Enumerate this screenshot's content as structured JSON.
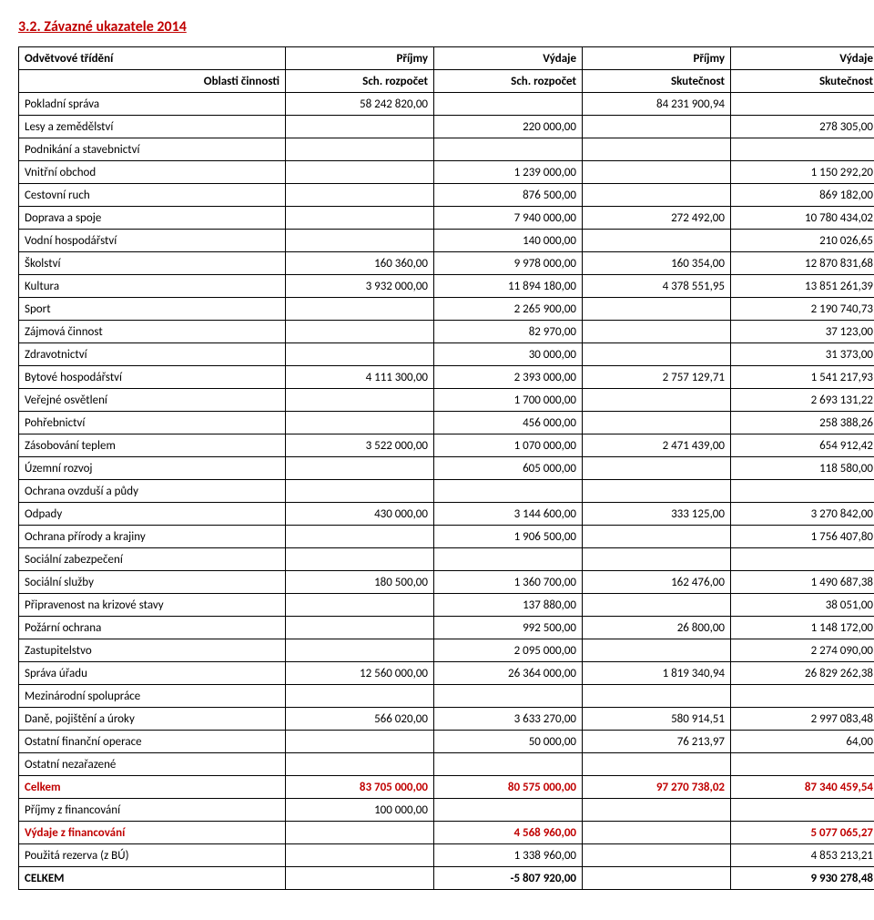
{
  "title": "3.2. Závazné ukazatele 2014",
  "colors": {
    "heading": "#c00000",
    "text": "#000000",
    "border": "#000000",
    "background": "#ffffff"
  },
  "header": {
    "row1": [
      "Odvětvové třídění",
      "Příjmy",
      "Výdaje",
      "Příjmy",
      "Výdaje"
    ],
    "row2": [
      "Oblasti činnosti",
      "Sch. rozpočet",
      "Sch. rozpočet",
      "Skutečnost",
      "Skutečnost"
    ]
  },
  "rows": [
    {
      "label": "Pokladní správa",
      "c1": "58 242 820,00",
      "c2": "",
      "c3": "84 231 900,94",
      "c4": ""
    },
    {
      "label": "Lesy a zemědělství",
      "c1": "",
      "c2": "220 000,00",
      "c3": "",
      "c4": "278 305,00"
    },
    {
      "label": "Podnikání a stavebnictví",
      "c1": "",
      "c2": "",
      "c3": "",
      "c4": ""
    },
    {
      "label": "Vnitřní obchod",
      "c1": "",
      "c2": "1 239 000,00",
      "c3": "",
      "c4": "1 150 292,20"
    },
    {
      "label": "Cestovní ruch",
      "c1": "",
      "c2": "876 500,00",
      "c3": "",
      "c4": "869 182,00"
    },
    {
      "label": "Doprava a spoje",
      "c1": "",
      "c2": "7 940 000,00",
      "c3": "272 492,00",
      "c4": "10 780 434,02"
    },
    {
      "label": "Vodní hospodářství",
      "c1": "",
      "c2": "140 000,00",
      "c3": "",
      "c4": "210 026,65"
    },
    {
      "label": "Školství",
      "c1": "160 360,00",
      "c2": "9 978 000,00",
      "c3": "160 354,00",
      "c4": "12 870 831,68"
    },
    {
      "label": "Kultura",
      "c1": "3 932 000,00",
      "c2": "11 894 180,00",
      "c3": "4 378 551,95",
      "c4": "13 851 261,39"
    },
    {
      "label": "Sport",
      "c1": "",
      "c2": "2 265 900,00",
      "c3": "",
      "c4": "2 190 740,73"
    },
    {
      "label": "Zájmová činnost",
      "c1": "",
      "c2": "82 970,00",
      "c3": "",
      "c4": "37 123,00"
    },
    {
      "label": "Zdravotnictví",
      "c1": "",
      "c2": "30 000,00",
      "c3": "",
      "c4": "31 373,00"
    },
    {
      "label": "Bytové hospodářství",
      "c1": "4 111 300,00",
      "c2": "2 393 000,00",
      "c3": "2 757 129,71",
      "c4": "1 541 217,93"
    },
    {
      "label": "Veřejné osvětlení",
      "c1": "",
      "c2": "1 700 000,00",
      "c3": "",
      "c4": "2 693 131,22"
    },
    {
      "label": "Pohřebnictví",
      "c1": "",
      "c2": "456 000,00",
      "c3": "",
      "c4": "258 388,26"
    },
    {
      "label": "Zásobování teplem",
      "c1": "3 522 000,00",
      "c2": "1 070 000,00",
      "c3": "2 471 439,00",
      "c4": "654 912,42"
    },
    {
      "label": "Územní rozvoj",
      "c1": "",
      "c2": "605 000,00",
      "c3": "",
      "c4": "118 580,00"
    },
    {
      "label": "Ochrana ovzduší a půdy",
      "c1": "",
      "c2": "",
      "c3": "",
      "c4": ""
    },
    {
      "label": "Odpady",
      "c1": "430 000,00",
      "c2": "3 144 600,00",
      "c3": "333 125,00",
      "c4": "3 270 842,00"
    },
    {
      "label": "Ochrana přírody a krajiny",
      "c1": "",
      "c2": "1 906 500,00",
      "c3": "",
      "c4": "1 756 407,80"
    },
    {
      "label": "Sociální zabezpečení",
      "c1": "",
      "c2": "",
      "c3": "",
      "c4": ""
    },
    {
      "label": "Sociální služby",
      "c1": "180 500,00",
      "c2": "1 360 700,00",
      "c3": "162 476,00",
      "c4": "1 490 687,38"
    },
    {
      "label": "Připravenost na krizové stavy",
      "c1": "",
      "c2": "137 880,00",
      "c3": "",
      "c4": "38 051,00"
    },
    {
      "label": "Požární ochrana",
      "c1": "",
      "c2": "992 500,00",
      "c3": "26 800,00",
      "c4": "1 148 172,00"
    },
    {
      "label": "Zastupitelstvo",
      "c1": "",
      "c2": "2 095 000,00",
      "c3": "",
      "c4": "2 274 090,00"
    },
    {
      "label": "Správa úřadu",
      "c1": "12 560 000,00",
      "c2": "26 364 000,00",
      "c3": "1 819 340,94",
      "c4": "26 829 262,38"
    },
    {
      "label": "Mezinárodní spolupráce",
      "c1": "",
      "c2": "",
      "c3": "",
      "c4": ""
    },
    {
      "label": "Daně, pojištění a úroky",
      "c1": "566 020,00",
      "c2": "3 633 270,00",
      "c3": "580 914,51",
      "c4": "2 997 083,48"
    },
    {
      "label": "Ostatní finanční operace",
      "c1": "",
      "c2": "50 000,00",
      "c3": "76 213,97",
      "c4": "64,00"
    },
    {
      "label": "Ostatní nezařazené",
      "c1": "",
      "c2": "",
      "c3": "",
      "c4": ""
    },
    {
      "label": "Celkem",
      "c1": "83 705 000,00",
      "c2": "80 575 000,00",
      "c3": "97 270 738,02",
      "c4": "87 340 459,54",
      "style": "red"
    },
    {
      "label": "Příjmy z financování",
      "c1": "100 000,00",
      "c2": "",
      "c3": "",
      "c4": ""
    },
    {
      "label": "Výdaje z financování",
      "c1": "",
      "c2": "4 568 960,00",
      "c3": "",
      "c4": "5 077 065,27",
      "style": "red"
    },
    {
      "label": "Použitá rezerva (z BÚ)",
      "c1": "",
      "c2": "1 338 960,00",
      "c3": "",
      "c4": "4 853 213,21"
    },
    {
      "label": "CELKEM",
      "c1": "",
      "c2": "-5 807 920,00",
      "c3": "",
      "c4": "9 930 278,48",
      "style": "bold"
    }
  ]
}
